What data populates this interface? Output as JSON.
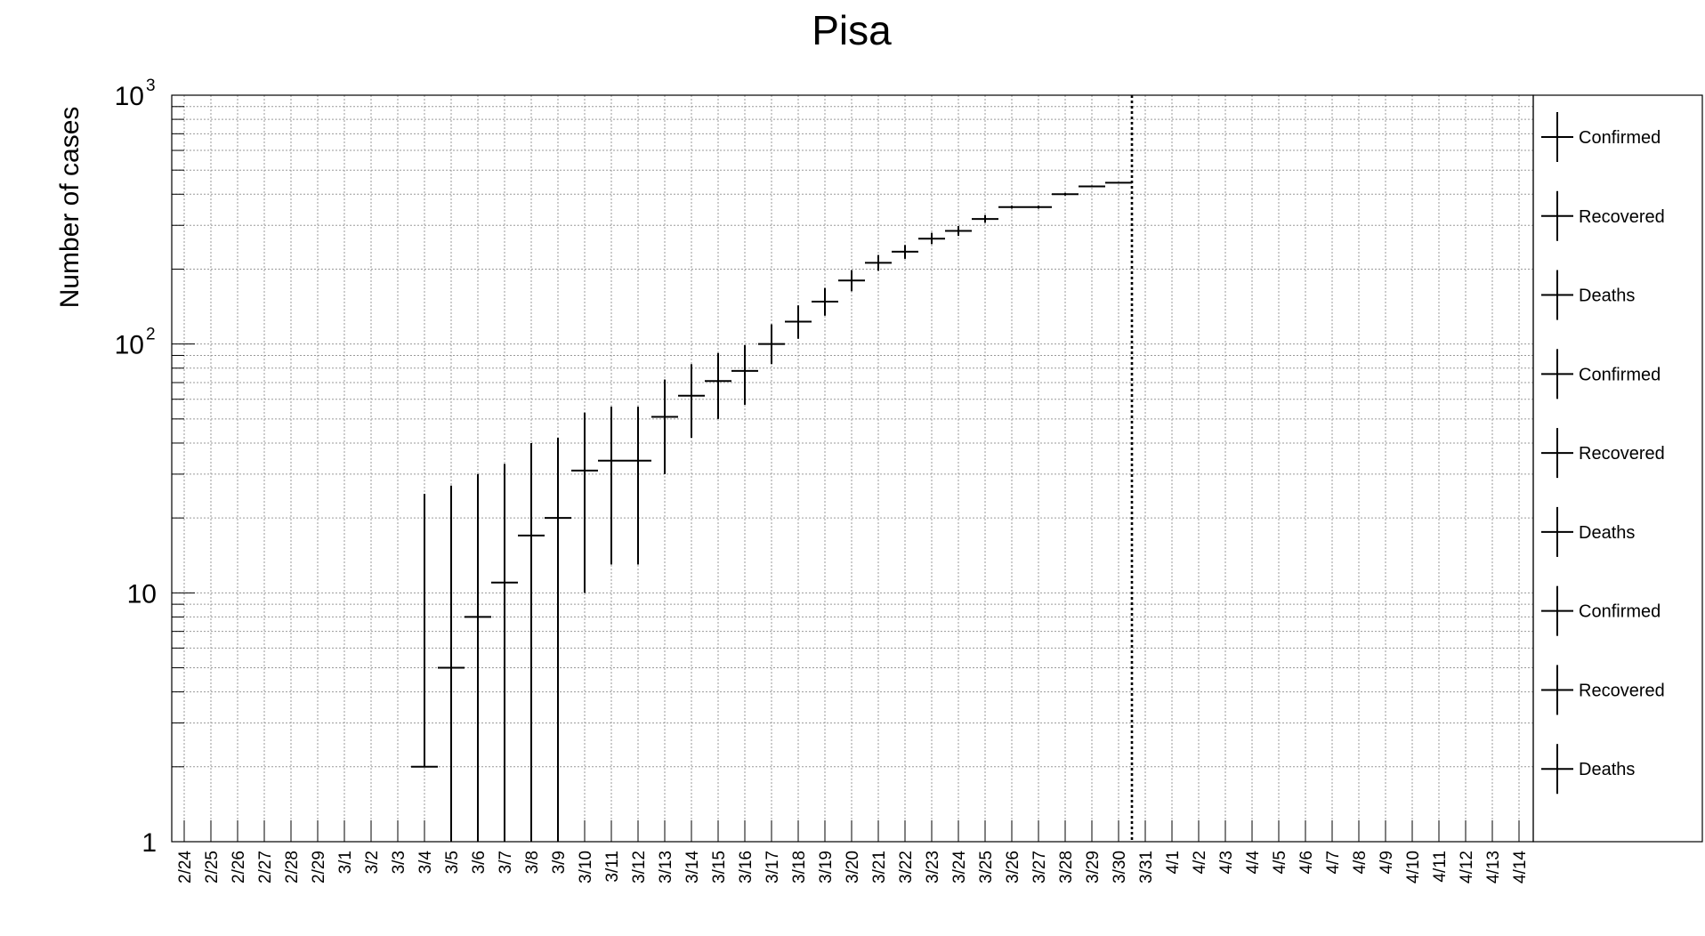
{
  "chart_data": {
    "type": "scatter",
    "title": "Pisa",
    "xlabel": "",
    "ylabel": "Number of cases",
    "y_scale": "log",
    "ylim": [
      1,
      1000
    ],
    "y_tick_labels": [
      {
        "value": 1,
        "base": "1",
        "exp": ""
      },
      {
        "value": 10,
        "base": "10",
        "exp": ""
      },
      {
        "value": 100,
        "base": "10",
        "exp": "2"
      },
      {
        "value": 1000,
        "base": "10",
        "exp": "3"
      }
    ],
    "grid": true,
    "x_categories": [
      "2/24",
      "2/25",
      "2/26",
      "2/27",
      "2/28",
      "2/29",
      "3/1",
      "3/2",
      "3/3",
      "3/4",
      "3/5",
      "3/6",
      "3/7",
      "3/8",
      "3/9",
      "3/10",
      "3/11",
      "3/12",
      "3/13",
      "3/14",
      "3/15",
      "3/16",
      "3/17",
      "3/18",
      "3/19",
      "3/20",
      "3/21",
      "3/22",
      "3/23",
      "3/24",
      "3/25",
      "3/26",
      "3/27",
      "3/28",
      "3/29",
      "3/30",
      "3/31",
      "4/1",
      "4/2",
      "4/3",
      "4/4",
      "4/5",
      "4/6",
      "4/7",
      "4/8",
      "4/9",
      "4/10",
      "4/11",
      "4/12",
      "4/13",
      "4/14"
    ],
    "marker_line_after": "3/30",
    "series": [
      {
        "name": "Confirmed",
        "points": [
          {
            "x": "3/4",
            "y": 2,
            "err_low": 2,
            "err_high": 25
          },
          {
            "x": "3/5",
            "y": 5,
            "err_low": 1,
            "err_high": 27
          },
          {
            "x": "3/6",
            "y": 8,
            "err_low": 1,
            "err_high": 30
          },
          {
            "x": "3/7",
            "y": 11,
            "err_low": 1,
            "err_high": 33
          },
          {
            "x": "3/8",
            "y": 17,
            "err_low": 1,
            "err_high": 40
          },
          {
            "x": "3/9",
            "y": 20,
            "err_low": 1,
            "err_high": 42
          },
          {
            "x": "3/10",
            "y": 31,
            "err_low": 10,
            "err_high": 53
          },
          {
            "x": "3/11",
            "y": 34,
            "err_low": 13,
            "err_high": 56
          },
          {
            "x": "3/12",
            "y": 34,
            "err_low": 13,
            "err_high": 56
          },
          {
            "x": "3/13",
            "y": 51,
            "err_low": 30,
            "err_high": 72
          },
          {
            "x": "3/14",
            "y": 62,
            "err_low": 42,
            "err_high": 83
          },
          {
            "x": "3/15",
            "y": 71,
            "err_low": 50,
            "err_high": 92
          },
          {
            "x": "3/16",
            "y": 78,
            "err_low": 57,
            "err_high": 99
          },
          {
            "x": "3/17",
            "y": 100,
            "err_low": 83,
            "err_high": 120
          },
          {
            "x": "3/18",
            "y": 123,
            "err_low": 105,
            "err_high": 143
          },
          {
            "x": "3/19",
            "y": 148,
            "err_low": 130,
            "err_high": 168
          },
          {
            "x": "3/20",
            "y": 180,
            "err_low": 163,
            "err_high": 198
          },
          {
            "x": "3/21",
            "y": 212,
            "err_low": 197,
            "err_high": 228
          },
          {
            "x": "3/22",
            "y": 235,
            "err_low": 220,
            "err_high": 250
          },
          {
            "x": "3/23",
            "y": 265,
            "err_low": 252,
            "err_high": 280
          },
          {
            "x": "3/24",
            "y": 285,
            "err_low": 272,
            "err_high": 298
          },
          {
            "x": "3/25",
            "y": 318,
            "err_low": 307,
            "err_high": 330
          },
          {
            "x": "3/26",
            "y": 355,
            "err_low": 350,
            "err_high": 360
          },
          {
            "x": "3/27",
            "y": 355,
            "err_low": 350,
            "err_high": 360
          },
          {
            "x": "3/28",
            "y": 400,
            "err_low": 395,
            "err_high": 405
          },
          {
            "x": "3/29",
            "y": 430,
            "err_low": 427,
            "err_high": 434
          },
          {
            "x": "3/30",
            "y": 445,
            "err_low": 442,
            "err_high": 448
          }
        ]
      }
    ],
    "legend": {
      "placement": "right",
      "entries": [
        "Confirmed",
        "Recovered",
        "Deaths",
        "Confirmed",
        "Recovered",
        "Deaths",
        "Confirmed",
        "Recovered",
        "Deaths"
      ]
    }
  }
}
